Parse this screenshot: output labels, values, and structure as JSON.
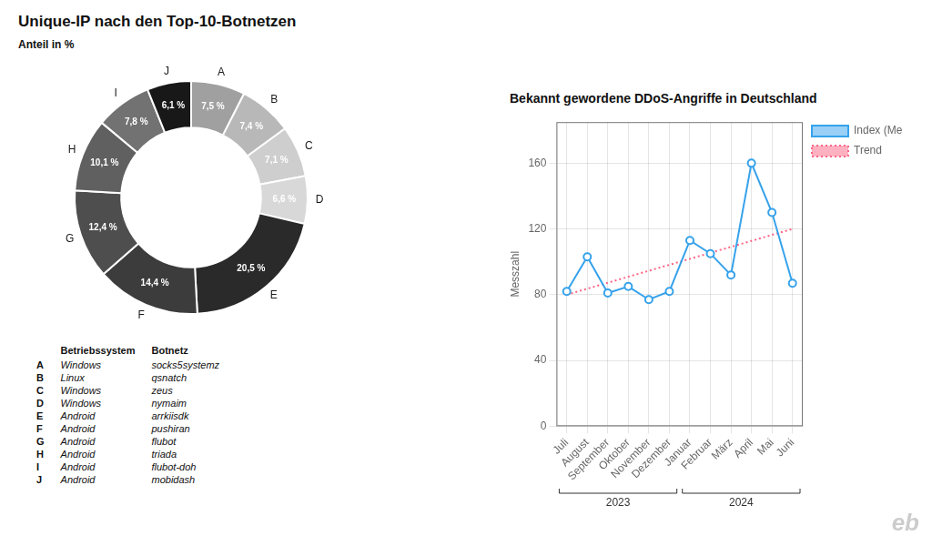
{
  "chart_data": [
    {
      "type": "doughnut",
      "title": "Unique-IP nach den Top-10-Botnetzen",
      "subtitle": "Anteil in %",
      "categories": [
        "A",
        "B",
        "C",
        "D",
        "E",
        "F",
        "G",
        "H",
        "I",
        "J"
      ],
      "values": [
        7.5,
        7.4,
        7.1,
        6.6,
        20.5,
        14.4,
        12.4,
        10.1,
        7.8,
        6.1
      ],
      "value_labels": [
        "7,5 %",
        "7,4 %",
        "7,1 %",
        "6,6 %",
        "20,5 %",
        "14,4 %",
        "12,4 %",
        "10,1 %",
        "7,8 %",
        "6,1 %"
      ],
      "colors": [
        "#a0a0a0",
        "#b8b8b8",
        "#cecece",
        "#d8d8d8",
        "#2a2a2a",
        "#3c3c3c",
        "#4e4e4e",
        "#606060",
        "#727272",
        "#181818"
      ],
      "data_labels": true,
      "table": {
        "headers": [
          "Betriebssystem",
          "Botnetz"
        ],
        "rows": [
          [
            "A",
            "Windows",
            "socks5systemz"
          ],
          [
            "B",
            "Linux",
            "qsnatch"
          ],
          [
            "C",
            "Windows",
            "zeus"
          ],
          [
            "D",
            "Windows",
            "nymaim"
          ],
          [
            "E",
            "Android",
            "arrkiisdk"
          ],
          [
            "F",
            "Android",
            "pushiran"
          ],
          [
            "G",
            "Android",
            "flubot"
          ],
          [
            "H",
            "Android",
            "triada"
          ],
          [
            "I",
            "Android",
            "flubot-doh"
          ],
          [
            "J",
            "Android",
            "mobidash"
          ]
        ]
      }
    },
    {
      "type": "line",
      "title": "Bekannt gewordene DDoS-Angriffe in Deutschland",
      "y_label": "Messzahl",
      "categories": [
        "Juli",
        "August",
        "September",
        "Oktober",
        "November",
        "Dezember",
        "Januar",
        "Februar",
        "März",
        "April",
        "Mai",
        "Juni"
      ],
      "series": [
        {
          "name": "Index (Messzahl)",
          "values": [
            82,
            103,
            81,
            85,
            77,
            82,
            113,
            105,
            92,
            160,
            130,
            87
          ],
          "marker": "circle",
          "line_style": "solid"
        },
        {
          "name": "Trend",
          "values": [
            80,
            83.63636363636364,
            87.27272727272727,
            90.9090909090909,
            94.54545454545455,
            98.18181818181819,
            101.81818181818181,
            105.45454545454545,
            109.0909090909091,
            112.72727272727273,
            116.36363636363637,
            120
          ],
          "marker": "none",
          "line_style": "dotted"
        }
      ],
      "ylim": [
        0,
        185
      ],
      "yticks": [
        0,
        40,
        80,
        120,
        160
      ],
      "grid": true,
      "legend": "right",
      "annotations": [
        {
          "text": "2023",
          "from": "Juli",
          "to": "Dezember"
        },
        {
          "text": "2024",
          "from": "Januar",
          "to": "Juni"
        }
      ],
      "watermark": "eb"
    }
  ]
}
